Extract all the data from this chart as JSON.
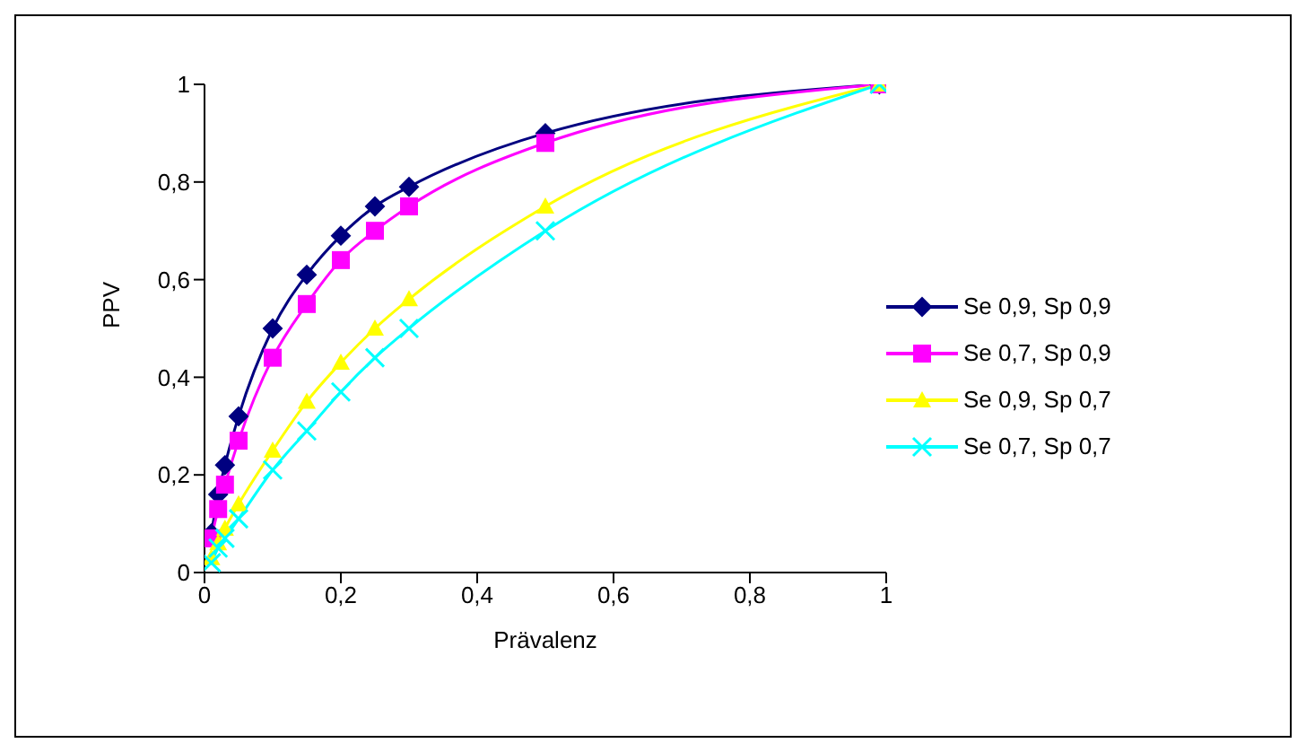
{
  "chart_data": {
    "type": "line",
    "xlabel": "Prävalenz",
    "ylabel": "PPV",
    "x": [
      0.01,
      0.02,
      0.03,
      0.05,
      0.1,
      0.15,
      0.2,
      0.25,
      0.3,
      0.5,
      0.99
    ],
    "series": [
      {
        "name": "Se 0,9, Sp 0,9",
        "color": "#000080",
        "marker": "diamond",
        "values": [
          0.08,
          0.16,
          0.22,
          0.32,
          0.5,
          0.61,
          0.69,
          0.75,
          0.79,
          0.9,
          1.0
        ]
      },
      {
        "name": "Se 0,7, Sp 0,9",
        "color": "#ff00ff",
        "marker": "square",
        "values": [
          0.07,
          0.13,
          0.18,
          0.27,
          0.44,
          0.55,
          0.64,
          0.7,
          0.75,
          0.88,
          1.0
        ]
      },
      {
        "name": "Se 0,9, Sp 0,7",
        "color": "#ffff00",
        "marker": "triangle",
        "values": [
          0.03,
          0.06,
          0.09,
          0.14,
          0.25,
          0.35,
          0.43,
          0.5,
          0.56,
          0.75,
          1.0
        ]
      },
      {
        "name": "Se 0,7, Sp 0,7",
        "color": "#00ffff",
        "marker": "cross",
        "values": [
          0.02,
          0.05,
          0.07,
          0.11,
          0.21,
          0.29,
          0.37,
          0.44,
          0.5,
          0.7,
          1.0
        ]
      }
    ],
    "xlim": [
      0,
      1
    ],
    "xticks": [
      0,
      {
        "value": 0.2,
        "label": "0,2"
      },
      {
        "value": 0.4,
        "label": "0,4"
      },
      {
        "value": 0.6,
        "label": "0,6"
      },
      {
        "value": 0.8,
        "label": "0,8"
      },
      1
    ],
    "ylim": [
      0,
      1
    ],
    "yticks": [
      0,
      {
        "value": 0.2,
        "label": "0,2"
      },
      {
        "value": 0.4,
        "label": "0,4"
      },
      {
        "value": 0.6,
        "label": "0,6"
      },
      {
        "value": 0.8,
        "label": "0,8"
      },
      1
    ],
    "grid": false,
    "legend": "right",
    "line_style": "solid"
  }
}
